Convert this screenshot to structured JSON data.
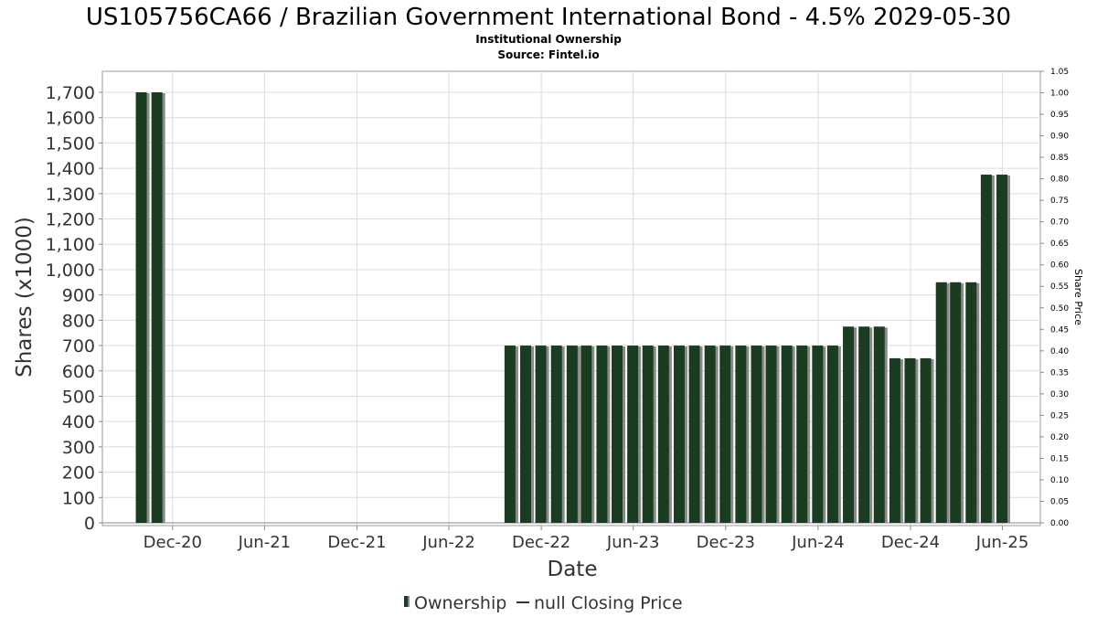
{
  "chart_data": {
    "type": "bar",
    "title": "US105756CA66 / Brazilian Government International Bond - 4.5% 2029-05-30",
    "subtitles": [
      "Institutional Ownership",
      "Source: Fintel.io"
    ],
    "xlabel": "Date",
    "ylabel": "Shares (x1000)",
    "y2label": "Share Price",
    "xlim": [
      "2020-07-15",
      "2025-08-15"
    ],
    "ylim": [
      0,
      1800
    ],
    "y2lim": [
      0,
      1.05
    ],
    "y_ticks": [
      "0",
      "100",
      "200",
      "300",
      "400",
      "500",
      "600",
      "700",
      "800",
      "900",
      "1,000",
      "1,100",
      "1,200",
      "1,300",
      "1,400",
      "1,500",
      "1,600",
      "1,700"
    ],
    "y_tick_values": [
      0,
      100,
      200,
      300,
      400,
      500,
      600,
      700,
      800,
      900,
      1000,
      1100,
      1200,
      1300,
      1400,
      1500,
      1600,
      1700
    ],
    "y2_ticks": [
      "0.00",
      "0.05",
      "0.10",
      "0.15",
      "0.20",
      "0.25",
      "0.30",
      "0.35",
      "0.40",
      "0.45",
      "0.50",
      "0.55",
      "0.60",
      "0.65",
      "0.70",
      "0.75",
      "0.80",
      "0.85",
      "0.90",
      "0.95",
      "1.00",
      "1.05"
    ],
    "y2_tick_values": [
      0,
      0.05,
      0.1,
      0.15,
      0.2,
      0.25,
      0.3,
      0.35,
      0.4,
      0.45,
      0.5,
      0.55,
      0.6,
      0.65,
      0.7,
      0.75,
      0.8,
      0.85,
      0.9,
      0.95,
      1.0,
      1.05
    ],
    "x_ticks": [
      {
        "label": "Dec-20",
        "date": "2020-12-01"
      },
      {
        "label": "Jun-21",
        "date": "2021-06-01"
      },
      {
        "label": "Dec-21",
        "date": "2021-12-01"
      },
      {
        "label": "Jun-22",
        "date": "2022-06-01"
      },
      {
        "label": "Dec-22",
        "date": "2022-12-01"
      },
      {
        "label": "Jun-23",
        "date": "2023-06-01"
      },
      {
        "label": "Dec-23",
        "date": "2023-12-01"
      },
      {
        "label": "Jun-24",
        "date": "2024-06-01"
      },
      {
        "label": "Dec-24",
        "date": "2024-12-01"
      },
      {
        "label": "Jun-25",
        "date": "2025-06-01"
      }
    ],
    "series": [
      {
        "name": "Ownership",
        "color": "#1a3d22",
        "x": [
          "2020-09-30",
          "2020-10-31",
          "2022-09-30",
          "2022-10-31",
          "2022-11-30",
          "2022-12-31",
          "2023-01-31",
          "2023-02-28",
          "2023-03-31",
          "2023-04-30",
          "2023-05-31",
          "2023-06-30",
          "2023-07-31",
          "2023-08-31",
          "2023-09-30",
          "2023-10-31",
          "2023-11-30",
          "2023-12-31",
          "2024-01-31",
          "2024-02-29",
          "2024-03-31",
          "2024-04-30",
          "2024-05-31",
          "2024-06-30",
          "2024-07-31",
          "2024-08-31",
          "2024-09-30",
          "2024-10-31",
          "2024-11-30",
          "2024-12-31",
          "2025-01-31",
          "2025-02-28",
          "2025-03-31",
          "2025-04-30",
          "2025-05-31"
        ],
        "values": [
          1700,
          1700,
          700,
          700,
          700,
          700,
          700,
          700,
          700,
          700,
          700,
          700,
          700,
          700,
          700,
          700,
          700,
          700,
          700,
          700,
          700,
          700,
          700,
          700,
          775,
          775,
          775,
          650,
          650,
          650,
          950,
          950,
          950,
          1375,
          1375
        ]
      },
      {
        "name": "null Closing Price",
        "color": "#555555",
        "values": []
      }
    ],
    "legend": "bottom-center"
  }
}
